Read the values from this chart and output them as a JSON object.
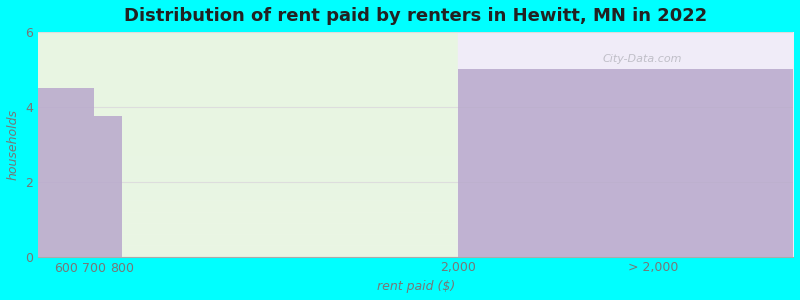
{
  "title": "Distribution of rent paid by renters in Hewitt, MN in 2022",
  "xlabel": "rent paid ($)",
  "ylabel": "households",
  "background_color": "#00FFFF",
  "bar_color": "#b8a8cc",
  "ylim": [
    0,
    6
  ],
  "xlim": [
    500,
    3200
  ],
  "yticks": [
    0,
    2,
    4,
    6
  ],
  "xtick_positions": [
    600,
    700,
    800,
    2000,
    2700
  ],
  "xtick_labels": [
    "600",
    "700",
    "800",
    "2,000",
    "> 2,000"
  ],
  "bars": [
    {
      "x_left": 500,
      "x_right": 700,
      "height": 4.5
    },
    {
      "x_left": 700,
      "x_right": 800,
      "height": 3.75
    },
    {
      "x_left": 800,
      "x_right": 2000,
      "height": 0
    },
    {
      "x_left": 2000,
      "x_right": 3200,
      "height": 5.0
    }
  ],
  "bg_left_color": "#e8f5e2",
  "bg_right_color": "#f0ecf8",
  "bg_split_x": 2000,
  "grid_color": "#dddddd",
  "title_fontsize": 13,
  "label_fontsize": 9,
  "tick_fontsize": 9,
  "watermark": "City-Data.com"
}
